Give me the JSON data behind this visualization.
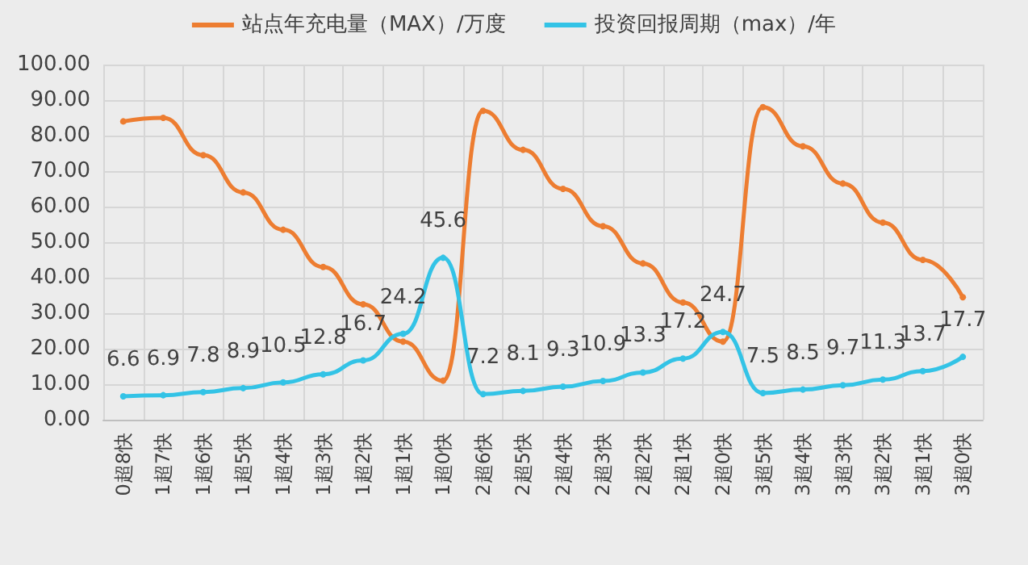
{
  "chart_data": {
    "type": "line",
    "categories": [
      "0超8快",
      "1超7快",
      "1超6快",
      "1超5快",
      "1超4快",
      "1超3快",
      "1超2快",
      "1超1快",
      "1超0快",
      "2超6快",
      "2超5快",
      "2超4快",
      "2超3快",
      "2超2快",
      "2超1快",
      "2超0快",
      "3超5快",
      "3超4快",
      "3超3快",
      "3超2快",
      "3超1快",
      "3超0快"
    ],
    "series": [
      {
        "name": "站点年充电量（MAX）/万度",
        "color": "#ed7d31",
        "values": [
          84,
          85,
          74.5,
          64,
          53.5,
          43,
          32.5,
          22,
          11,
          87,
          76,
          65,
          54.5,
          44,
          33,
          22,
          88,
          77,
          66.5,
          55.5,
          45,
          34.5
        ]
      },
      {
        "name": "投资回报周期（max）/年",
        "color": "#33c3e6",
        "values": [
          6.6,
          6.9,
          7.8,
          8.9,
          10.5,
          12.8,
          16.7,
          24.2,
          45.6,
          7.2,
          8.1,
          9.3,
          10.9,
          13.3,
          17.2,
          24.7,
          7.5,
          8.5,
          9.7,
          11.3,
          13.7,
          17.7
        ],
        "value_labels": [
          "6.6",
          "6.9",
          "7.8",
          "8.9",
          "10.5",
          "12.8",
          "16.7",
          "24.2",
          "45.6",
          "7.2",
          "8.1",
          "9.3",
          "10.9",
          "13.3",
          "17.2",
          "24.7",
          "7.5",
          "8.5",
          "9.7",
          "11.3",
          "13.7",
          "17.7"
        ]
      }
    ],
    "ylim": [
      0,
      100
    ],
    "yticks": [
      {
        "value": 0,
        "label": "0.00"
      },
      {
        "value": 10,
        "label": "10.00"
      },
      {
        "value": 20,
        "label": "20.00"
      },
      {
        "value": 30,
        "label": "30.00"
      },
      {
        "value": 40,
        "label": "40.00"
      },
      {
        "value": 50,
        "label": "50.00"
      },
      {
        "value": 60,
        "label": "60.00"
      },
      {
        "value": 70,
        "label": "70.00"
      },
      {
        "value": 80,
        "label": "80.00"
      },
      {
        "value": 90,
        "label": "90.00"
      },
      {
        "value": 100,
        "label": "100.00"
      }
    ],
    "grid": true,
    "legend": "top",
    "marker": "circle"
  }
}
